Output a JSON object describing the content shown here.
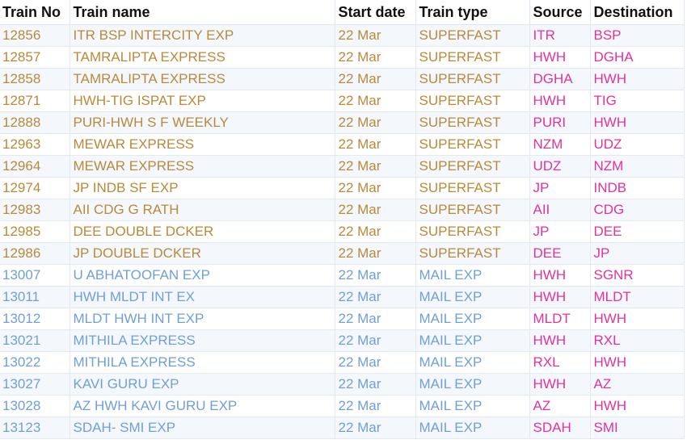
{
  "headers": {
    "train_no": "Train No",
    "train_name": "Train name",
    "start_date": "Start date",
    "train_type": "Train type",
    "source": "Source",
    "destination": "Destination"
  },
  "rows": [
    {
      "no": "12856",
      "name": "ITR BSP INTERCITY EXP",
      "date": "22 Mar",
      "type": "SUPERFAST",
      "source": "ITR",
      "dest": "BSP"
    },
    {
      "no": "12857",
      "name": "TAMRALIPTA EXPRESS",
      "date": "22 Mar",
      "type": "SUPERFAST",
      "source": "HWH",
      "dest": "DGHA"
    },
    {
      "no": "12858",
      "name": "TAMRALIPTA EXPRESS",
      "date": "22 Mar",
      "type": "SUPERFAST",
      "source": "DGHA",
      "dest": "HWH"
    },
    {
      "no": "12871",
      "name": "HWH-TIG ISPAT EXP",
      "date": "22 Mar",
      "type": "SUPERFAST",
      "source": "HWH",
      "dest": "TIG"
    },
    {
      "no": "12888",
      "name": "PURI-HWH S F WEEKLY",
      "date": "22 Mar",
      "type": "SUPERFAST",
      "source": "PURI",
      "dest": "HWH"
    },
    {
      "no": "12963",
      "name": "MEWAR EXPRESS",
      "date": "22 Mar",
      "type": "SUPERFAST",
      "source": "NZM",
      "dest": "UDZ"
    },
    {
      "no": "12964",
      "name": "MEWAR EXPRESS",
      "date": "22 Mar",
      "type": "SUPERFAST",
      "source": "UDZ",
      "dest": "NZM"
    },
    {
      "no": "12974",
      "name": "JP INDB SF EXP",
      "date": "22 Mar",
      "type": "SUPERFAST",
      "source": "JP",
      "dest": "INDB"
    },
    {
      "no": "12983",
      "name": "AII CDG G RATH",
      "date": "22 Mar",
      "type": "SUPERFAST",
      "source": "AII",
      "dest": "CDG"
    },
    {
      "no": "12985",
      "name": "DEE DOUBLE DCKER",
      "date": "22 Mar",
      "type": "SUPERFAST",
      "source": "JP",
      "dest": "DEE"
    },
    {
      "no": "12986",
      "name": "JP DOUBLE DCKER",
      "date": "22 Mar",
      "type": "SUPERFAST",
      "source": "DEE",
      "dest": "JP"
    },
    {
      "no": "13007",
      "name": "U ABHATOOFAN EXP",
      "date": "22 Mar",
      "type": "MAIL EXP",
      "source": "HWH",
      "dest": "SGNR"
    },
    {
      "no": "13011",
      "name": "HWH MLDT INT EX",
      "date": "22 Mar",
      "type": "MAIL EXP",
      "source": "HWH",
      "dest": "MLDT"
    },
    {
      "no": "13012",
      "name": "MLDT HWH INT EXP",
      "date": "22 Mar",
      "type": "MAIL EXP",
      "source": "MLDT",
      "dest": "HWH"
    },
    {
      "no": "13021",
      "name": "MITHILA EXPRESS",
      "date": "22 Mar",
      "type": "MAIL EXP",
      "source": "HWH",
      "dest": "RXL"
    },
    {
      "no": "13022",
      "name": "MITHILA EXPRESS",
      "date": "22 Mar",
      "type": "MAIL EXP",
      "source": "RXL",
      "dest": "HWH"
    },
    {
      "no": "13027",
      "name": "KAVI GURU EXP",
      "date": "22 Mar",
      "type": "MAIL EXP",
      "source": "HWH",
      "dest": "AZ"
    },
    {
      "no": "13028",
      "name": "AZ HWH KAVI GURU EXP",
      "date": "22 Mar",
      "type": "MAIL EXP",
      "source": "AZ",
      "dest": "HWH"
    },
    {
      "no": "13123",
      "name": "SDAH- SMI EXP",
      "date": "22 Mar",
      "type": "MAIL EXP",
      "source": "SDAH",
      "dest": "SMI"
    }
  ],
  "colors": {
    "superfast_text": "#b9893a",
    "mail_text": "#6f9fd8",
    "station_text": "#e0339f",
    "header_text": "#111111",
    "row_stripe": "#f4f8fd"
  }
}
